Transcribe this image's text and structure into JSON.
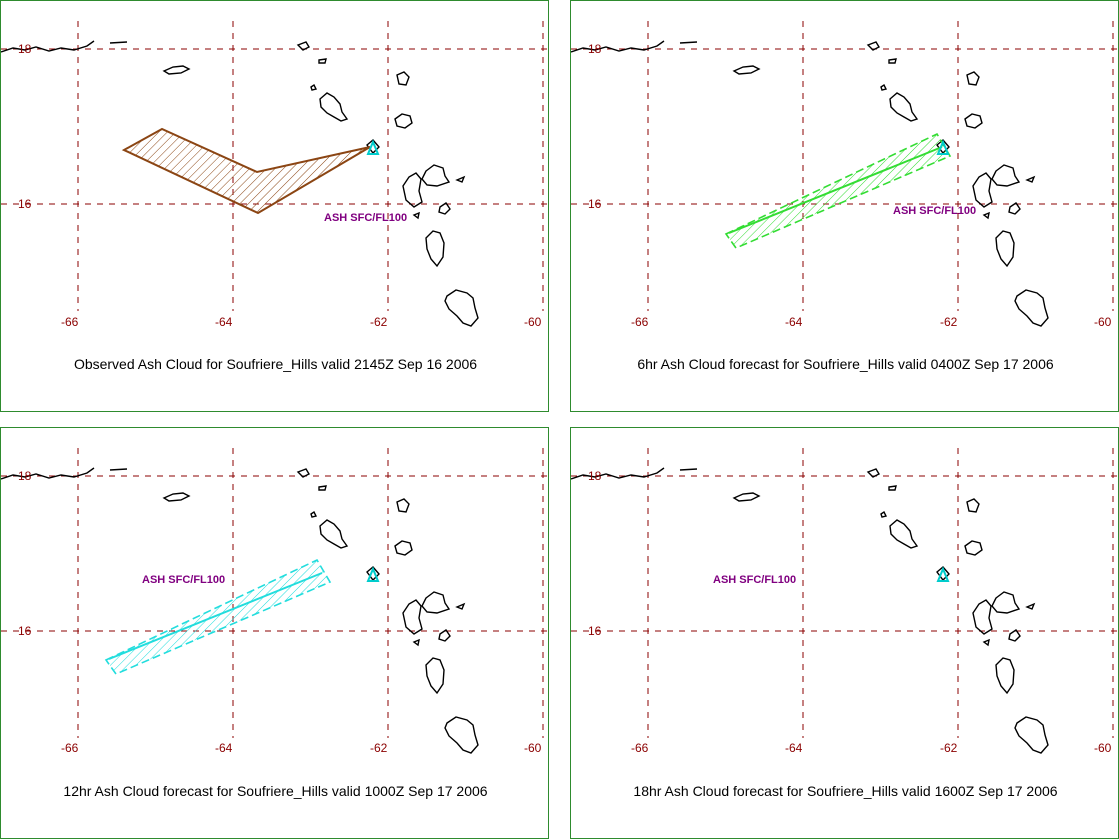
{
  "panels": [
    {
      "caption": "Observed Ash Cloud for Soufriere_Hills valid 2145Z Sep 16 2006",
      "ash_label": "ASH SFC/FL100",
      "cloud_color": "#8b4513",
      "cloud_type": "polygon"
    },
    {
      "caption": "6hr Ash Cloud forecast for Soufriere_Hills valid 0400Z Sep 17 2006",
      "ash_label": "ASH SFC/FL100",
      "cloud_color": "#33dd33",
      "cloud_type": "band"
    },
    {
      "caption": "12hr Ash Cloud forecast for Soufriere_Hills valid 1000Z Sep 17 2006",
      "ash_label": "ASH SFC/FL100",
      "cloud_color": "#22dddd",
      "cloud_type": "band"
    },
    {
      "caption": "18hr Ash Cloud forecast for Soufriere_Hills valid 1600Z Sep 17 2006",
      "ash_label": "ASH SFC/FL100",
      "cloud_color": "#dd22dd",
      "cloud_type": "band"
    }
  ],
  "map": {
    "lat_ticks": [
      "18",
      "16"
    ],
    "lon_ticks": [
      "-66",
      "-64",
      "-62",
      "-60"
    ],
    "grid_color": "#8b0000",
    "volcano_color": "#00cccc",
    "label_color": "#800080"
  }
}
